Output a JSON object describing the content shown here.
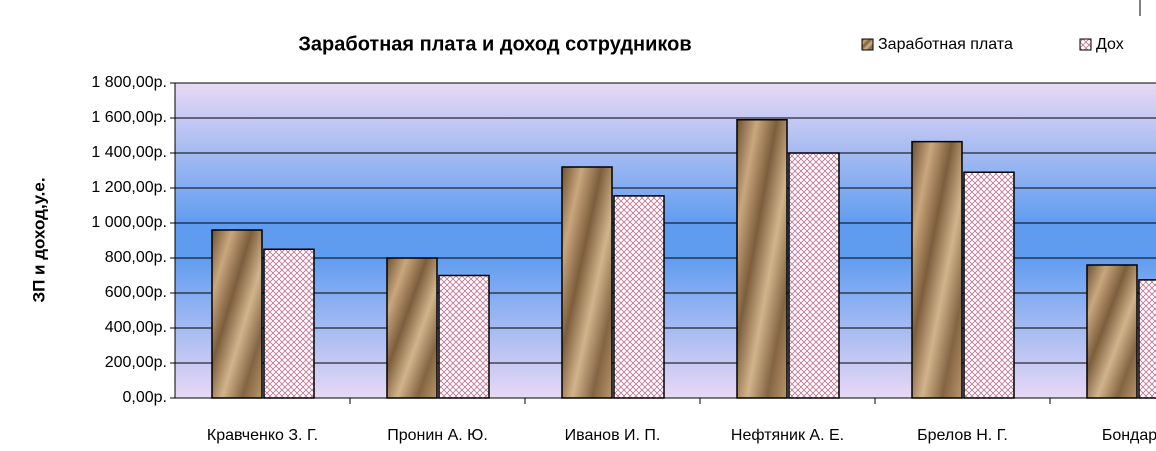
{
  "chart_data": {
    "type": "bar",
    "title": "Заработная плата и доход сотрудников",
    "y_label": "ЗП и доход,у.е.",
    "categories": [
      "Кравченко З. Г.",
      "Пронин А. Ю.",
      "Иванов И. П.",
      "Нефтяник А. Е.",
      "Брелов Н. Г.",
      "Бондарчу"
    ],
    "series": [
      {
        "name": "Заработная плата",
        "color": "#9c7a52",
        "values": [
          960,
          800,
          1320,
          1590,
          1465,
          760
        ]
      },
      {
        "name": "Дох",
        "color": "#f4c8d8",
        "values": [
          850,
          700,
          1155,
          1400,
          1290,
          675
        ]
      }
    ],
    "ylim": [
      0,
      1800
    ],
    "yticks": [
      {
        "value": 0,
        "label": "0,00р."
      },
      {
        "value": 200,
        "label": "200,00р."
      },
      {
        "value": 400,
        "label": "400,00р."
      },
      {
        "value": 600,
        "label": "600,00р."
      },
      {
        "value": 800,
        "label": "800,00р."
      },
      {
        "value": 1000,
        "label": "1 000,00р."
      },
      {
        "value": 1200,
        "label": "1 200,00р."
      },
      {
        "value": 1400,
        "label": "1 400,00р."
      },
      {
        "value": 1600,
        "label": "1 600,00р."
      },
      {
        "value": 1800,
        "label": "1 800,00р."
      }
    ],
    "grid": true,
    "legend": "top-right"
  }
}
